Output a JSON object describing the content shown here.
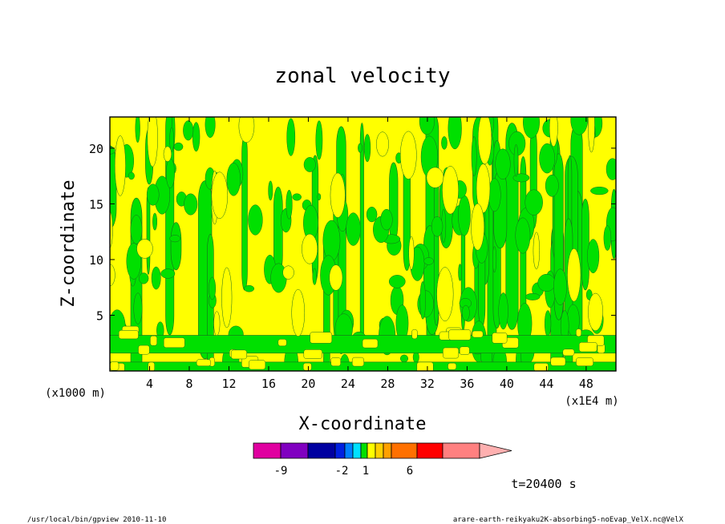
{
  "chart_data": {
    "type": "heatmap",
    "title": "zonal velocity",
    "xlabel": "X-coordinate",
    "ylabel": "Z-coordinate",
    "x_unit_label": "(x1E4 m)",
    "y_unit_label": "(x1000 m)",
    "xlim": [
      0,
      51
    ],
    "ylim": [
      0,
      22.8
    ],
    "x_ticks": [
      4,
      8,
      12,
      16,
      20,
      24,
      28,
      32,
      36,
      40,
      44,
      48
    ],
    "y_ticks": [
      5,
      10,
      15,
      20
    ],
    "field": {
      "pattern": "alternating positive/negative vertical columns of zonal velocity",
      "dominant_levels": [
        {
          "range": "0 to 1",
          "color": "#ffff00"
        },
        {
          "range": "-1 to 0",
          "color": "#00e000"
        }
      ]
    },
    "colorbar": {
      "colors": [
        "#e000a0",
        "#8000c0",
        "#0000a0",
        "#0020e0",
        "#0080ff",
        "#00e0ff",
        "#00e000",
        "#ffff00",
        "#ffd000",
        "#ffa000",
        "#ff7000",
        "#ff0000",
        "#ff8080",
        "#ffb0b0"
      ],
      "labels": [
        "-9",
        "-2",
        "1",
        "6"
      ],
      "extend": "max"
    },
    "time_label": "t=20400 s",
    "footer_left": "/usr/local/bin/gpview  2010-11-10",
    "footer_right": "arare-earth-reikyaku2K-absorbing5-noEvap_VelX.nc@VelX"
  }
}
